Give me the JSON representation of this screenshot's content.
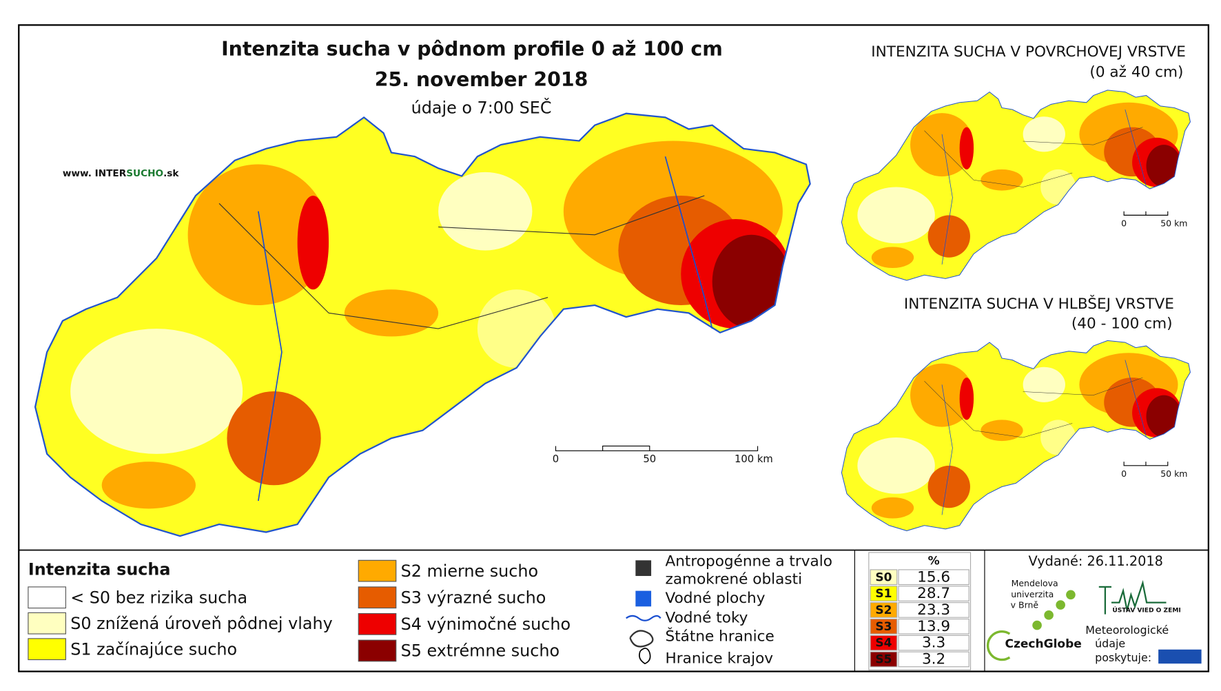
{
  "header": {
    "title": "Intenzita sucha v pôdnom profile 0 až 100 cm",
    "date": "25. november 2018",
    "time": "údaje o 7:00 SEČ",
    "website": [
      "www. INTER",
      "SUCHO",
      ".sk"
    ]
  },
  "main_map": {
    "scale_labels": [
      "0",
      "50",
      "100 km"
    ]
  },
  "inset_maps": [
    {
      "title": [
        "INTENZITA SUCHA V POVRCHOVEJ VRSTVE",
        "(0 až 40 cm)"
      ],
      "scale_labels": [
        "0",
        "50 km"
      ]
    },
    {
      "title": [
        "INTENZITA SUCHA V HLBŠEJ VRSTVE",
        "(40 - 100 cm)"
      ],
      "scale_labels": [
        "0",
        "50 km"
      ]
    }
  ],
  "legend": {
    "title": "Intenzita sucha",
    "classes": [
      {
        "label": "< S0 bez rizika sucha",
        "color": "#ffffff"
      },
      {
        "label": "S0 znížená úroveň pôdnej vlahy",
        "color": "#ffffc0"
      },
      {
        "label": "S1 začínajúce sucho",
        "color": "#ffff00"
      },
      {
        "label": "S2 mierne sucho",
        "color": "#ffaa00"
      },
      {
        "label": "S3 výrazné sucho",
        "color": "#e65c00"
      },
      {
        "label": "S4 výnimočné sucho",
        "color": "#ee0000"
      },
      {
        "label": "S5 extrémne sucho",
        "color": "#8b0000"
      }
    ]
  },
  "symbols": [
    [
      "Antropogénne a trvalo",
      "zamokrené oblasti"
    ],
    [
      "Vodné plochy"
    ],
    [
      "Vodné toky"
    ],
    [
      "Štátne hranice"
    ],
    [
      "Hranice krajov"
    ]
  ],
  "table": {
    "header": "%",
    "rows": [
      {
        "class": "S0",
        "value": 15.6,
        "color": "#ffffc0"
      },
      {
        "class": "S1",
        "value": 28.7,
        "color": "#ffff00"
      },
      {
        "class": "S2",
        "value": 23.3,
        "color": "#ffaa00"
      },
      {
        "class": "S3",
        "value": 13.9,
        "color": "#e65c00"
      },
      {
        "class": "S4",
        "value": 3.3,
        "color": "#ee0000"
      },
      {
        "class": "S5",
        "value": 3.2,
        "color": "#8b0000"
      }
    ]
  },
  "footer": {
    "issued": "Vydané: 26.11.2018",
    "mendel": [
      "Mendelova",
      "univerzita",
      "v Brně"
    ],
    "czechglobe": "CzechGlobe",
    "ustav": "ÚSTAV VIED O ZEMI",
    "shmu": [
      "Meteorologické",
      "údaje",
      "poskytuje:"
    ]
  }
}
